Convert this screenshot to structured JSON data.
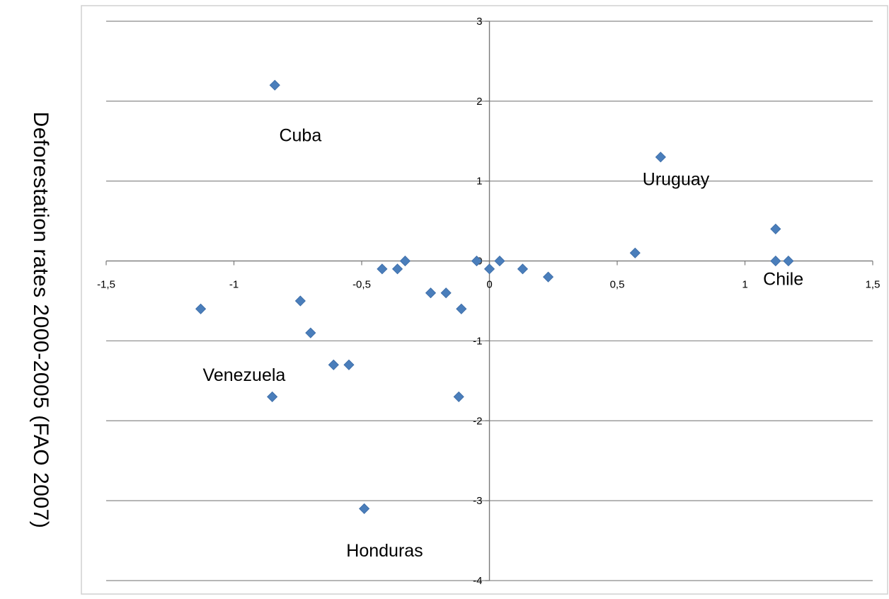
{
  "chart_data": {
    "type": "scatter",
    "title": "",
    "xlabel": "",
    "ylabel": "Deforestation rates  2000-2005  (FAO 2007)",
    "xlim": [
      -1.5,
      1.5
    ],
    "ylim": [
      -4,
      3
    ],
    "xticks": [
      -1.5,
      -1,
      -0.5,
      0,
      0.5,
      1,
      1.5
    ],
    "xtick_labels": [
      "-1,5",
      "-1",
      "-0,5",
      "0",
      "0,5",
      "1",
      "1,5"
    ],
    "yticks": [
      3,
      2,
      1,
      0,
      -1,
      -2,
      -3,
      -4
    ],
    "ytick_labels": [
      "3",
      "2",
      "1",
      "0",
      "-1",
      "-2",
      "-3",
      "-4"
    ],
    "grid": "horizontal",
    "marker_color": "#4a7ebb",
    "series": [
      {
        "points": [
          {
            "x": -0.84,
            "y": 2.2
          },
          {
            "x": 0.67,
            "y": 1.3
          },
          {
            "x": 1.12,
            "y": 0.4
          },
          {
            "x": 0.57,
            "y": 0.1
          },
          {
            "x": 1.12,
            "y": 0.0
          },
          {
            "x": 1.17,
            "y": 0.0
          },
          {
            "x": -0.33,
            "y": 0.0
          },
          {
            "x": 0.04,
            "y": 0.0
          },
          {
            "x": -0.05,
            "y": 0.0
          },
          {
            "x": -0.42,
            "y": -0.1
          },
          {
            "x": -0.36,
            "y": -0.1
          },
          {
            "x": 0.0,
            "y": -0.1
          },
          {
            "x": 0.13,
            "y": -0.1
          },
          {
            "x": 0.23,
            "y": -0.2
          },
          {
            "x": -0.23,
            "y": -0.4
          },
          {
            "x": -0.17,
            "y": -0.4
          },
          {
            "x": -1.13,
            "y": -0.6
          },
          {
            "x": -0.11,
            "y": -0.6
          },
          {
            "x": -0.74,
            "y": -0.5
          },
          {
            "x": -0.7,
            "y": -0.9
          },
          {
            "x": -0.61,
            "y": -1.3
          },
          {
            "x": -0.55,
            "y": -1.3
          },
          {
            "x": -0.85,
            "y": -1.7
          },
          {
            "x": -0.12,
            "y": -1.7
          },
          {
            "x": -0.49,
            "y": -3.1
          }
        ]
      }
    ],
    "annotations": [
      {
        "text": "Cuba",
        "x": -0.74,
        "y": 1.5
      },
      {
        "text": "Uruguay",
        "x": 0.73,
        "y": 0.95
      },
      {
        "text": "Chile",
        "x": 1.15,
        "y": -0.3
      },
      {
        "text": "Venezuela",
        "x": -0.96,
        "y": -1.5
      },
      {
        "text": "Honduras",
        "x": -0.41,
        "y": -3.7
      }
    ]
  }
}
